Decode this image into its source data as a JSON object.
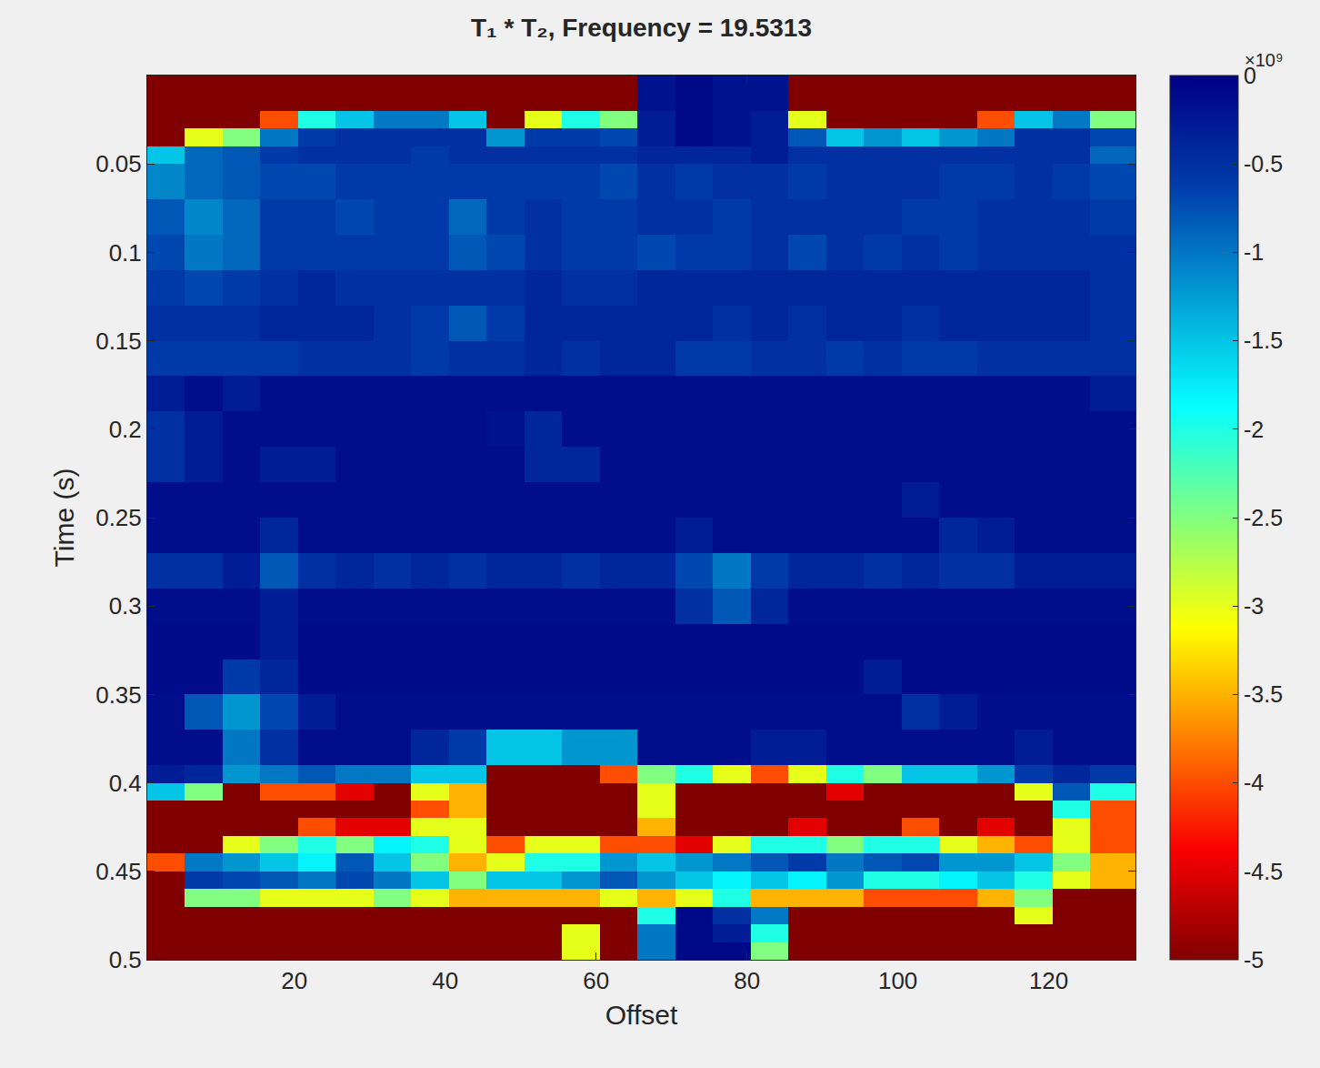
{
  "chart_data": {
    "type": "heatmap",
    "title": "T₁ * T₂, Frequency = 19.5313",
    "xlabel": "Offset",
    "ylabel": "Time (s)",
    "xlim": [
      0.5,
      131.5
    ],
    "ylim": [
      0.5,
      0
    ],
    "xticks": [
      20,
      40,
      60,
      80,
      100,
      120
    ],
    "yticks": [
      0.05,
      0.1,
      0.15,
      0.2,
      0.25,
      0.3,
      0.35,
      0.4,
      0.45,
      0.5
    ],
    "x_edges": [
      0.5,
      5.5,
      10.5,
      15.5,
      20.5,
      25.5,
      30.5,
      35.5,
      40.5,
      45.5,
      50.5,
      55.5,
      60.5,
      65.5,
      70.5,
      75.5,
      80.5,
      85.5,
      90.5,
      95.5,
      100.5,
      105.5,
      110.5,
      115.5,
      120.5,
      125.5,
      131.5
    ],
    "y_edges": [
      0,
      0.01,
      0.02,
      0.03,
      0.04,
      0.05,
      0.07,
      0.09,
      0.11,
      0.13,
      0.15,
      0.17,
      0.19,
      0.21,
      0.23,
      0.25,
      0.27,
      0.29,
      0.31,
      0.33,
      0.35,
      0.37,
      0.39,
      0.4,
      0.41,
      0.42,
      0.43,
      0.44,
      0.45,
      0.46,
      0.47,
      0.48,
      0.49,
      0.5
    ],
    "cells": [
      [
        -6,
        -6,
        -6,
        -6,
        -6,
        -6,
        -6,
        -6,
        -6,
        -6,
        -6,
        -6,
        -6,
        -0.2,
        -0.1,
        -0.2,
        -0.2,
        -6,
        -6,
        -6,
        -6,
        -6,
        -6,
        -6,
        -6,
        -6
      ],
      [
        -6,
        -6,
        -6,
        -6,
        -6,
        -6,
        -6,
        -6,
        -6,
        -6,
        -6,
        -6,
        -6,
        -0.2,
        -0.1,
        -0.2,
        -0.2,
        -6,
        -6,
        -6,
        -6,
        -6,
        -6,
        -6,
        -6,
        -6
      ],
      [
        -6,
        -6,
        -6,
        -4,
        -2,
        -1.5,
        -1,
        -1,
        -1.5,
        -5,
        -3,
        -2,
        -2.5,
        -0.3,
        -0.1,
        -0.2,
        -0.3,
        -3,
        -6,
        -5,
        -6,
        -5,
        -4,
        -1.5,
        -1,
        -2.5
      ],
      [
        -5,
        -3,
        -2.5,
        -1,
        -0.6,
        -0.5,
        -0.5,
        -0.5,
        -0.5,
        -1.2,
        -0.6,
        -0.6,
        -0.7,
        -0.3,
        -0.1,
        -0.2,
        -0.3,
        -0.8,
        -1.5,
        -1.2,
        -1.5,
        -1.2,
        -1,
        -0.5,
        -0.5,
        -0.7
      ],
      [
        -1.5,
        -0.9,
        -0.8,
        -0.6,
        -0.5,
        -0.5,
        -0.5,
        -0.6,
        -0.5,
        -0.5,
        -0.5,
        -0.5,
        -0.5,
        -0.4,
        -0.4,
        -0.4,
        -0.3,
        -0.5,
        -0.5,
        -0.5,
        -0.5,
        -0.5,
        -0.5,
        -0.5,
        -0.5,
        -0.9
      ],
      [
        -1.1,
        -0.9,
        -0.8,
        -0.7,
        -0.7,
        -0.6,
        -0.6,
        -0.6,
        -0.6,
        -0.6,
        -0.6,
        -0.6,
        -0.7,
        -0.5,
        -0.6,
        -0.5,
        -0.5,
        -0.6,
        -0.5,
        -0.5,
        -0.5,
        -0.6,
        -0.6,
        -0.5,
        -0.6,
        -0.7
      ],
      [
        -0.8,
        -1.1,
        -0.9,
        -0.6,
        -0.6,
        -0.7,
        -0.6,
        -0.6,
        -0.9,
        -0.6,
        -0.5,
        -0.6,
        -0.6,
        -0.5,
        -0.5,
        -0.6,
        -0.5,
        -0.5,
        -0.5,
        -0.5,
        -0.6,
        -0.6,
        -0.5,
        -0.5,
        -0.5,
        -0.6
      ],
      [
        -0.7,
        -1.0,
        -0.9,
        -0.6,
        -0.6,
        -0.6,
        -0.6,
        -0.6,
        -0.8,
        -0.7,
        -0.5,
        -0.6,
        -0.6,
        -0.7,
        -0.6,
        -0.6,
        -0.5,
        -0.7,
        -0.5,
        -0.6,
        -0.5,
        -0.6,
        -0.5,
        -0.5,
        -0.5,
        -0.5
      ],
      [
        -0.6,
        -0.7,
        -0.6,
        -0.5,
        -0.4,
        -0.5,
        -0.5,
        -0.5,
        -0.5,
        -0.5,
        -0.4,
        -0.5,
        -0.5,
        -0.4,
        -0.4,
        -0.4,
        -0.4,
        -0.4,
        -0.4,
        -0.4,
        -0.4,
        -0.4,
        -0.4,
        -0.4,
        -0.4,
        -0.5
      ],
      [
        -0.5,
        -0.5,
        -0.5,
        -0.4,
        -0.4,
        -0.4,
        -0.5,
        -0.6,
        -0.8,
        -0.6,
        -0.4,
        -0.4,
        -0.4,
        -0.4,
        -0.4,
        -0.5,
        -0.4,
        -0.5,
        -0.4,
        -0.4,
        -0.5,
        -0.4,
        -0.4,
        -0.4,
        -0.4,
        -0.5
      ],
      [
        -0.6,
        -0.6,
        -0.6,
        -0.6,
        -0.5,
        -0.5,
        -0.5,
        -0.6,
        -0.5,
        -0.5,
        -0.4,
        -0.5,
        -0.4,
        -0.4,
        -0.6,
        -0.6,
        -0.5,
        -0.5,
        -0.6,
        -0.5,
        -0.6,
        -0.6,
        -0.5,
        -0.5,
        -0.5,
        -0.5
      ],
      [
        -0.3,
        -0.15,
        -0.3,
        -0.15,
        -0.15,
        -0.15,
        -0.15,
        -0.15,
        -0.15,
        -0.15,
        -0.15,
        -0.15,
        -0.15,
        -0.15,
        -0.15,
        -0.15,
        -0.15,
        -0.15,
        -0.15,
        -0.15,
        -0.15,
        -0.15,
        -0.15,
        -0.15,
        -0.15,
        -0.3
      ],
      [
        -0.5,
        -0.3,
        -0.15,
        -0.15,
        -0.15,
        -0.15,
        -0.15,
        -0.15,
        -0.15,
        -0.2,
        -0.4,
        -0.15,
        -0.15,
        -0.15,
        -0.15,
        -0.15,
        -0.15,
        -0.15,
        -0.15,
        -0.15,
        -0.15,
        -0.15,
        -0.15,
        -0.15,
        -0.15,
        -0.15
      ],
      [
        -0.5,
        -0.3,
        -0.15,
        -0.3,
        -0.3,
        -0.15,
        -0.15,
        -0.15,
        -0.15,
        -0.15,
        -0.4,
        -0.4,
        -0.15,
        -0.15,
        -0.15,
        -0.15,
        -0.15,
        -0.15,
        -0.15,
        -0.15,
        -0.15,
        -0.15,
        -0.15,
        -0.15,
        -0.15,
        -0.15
      ],
      [
        -0.15,
        -0.15,
        -0.15,
        -0.15,
        -0.15,
        -0.15,
        -0.15,
        -0.15,
        -0.15,
        -0.15,
        -0.15,
        -0.15,
        -0.15,
        -0.15,
        -0.15,
        -0.15,
        -0.15,
        -0.15,
        -0.15,
        -0.15,
        -0.3,
        -0.15,
        -0.15,
        -0.15,
        -0.15,
        -0.15
      ],
      [
        -0.15,
        -0.15,
        -0.15,
        -0.4,
        -0.15,
        -0.15,
        -0.15,
        -0.15,
        -0.15,
        -0.15,
        -0.15,
        -0.15,
        -0.15,
        -0.15,
        -0.3,
        -0.15,
        -0.15,
        -0.15,
        -0.15,
        -0.15,
        -0.15,
        -0.4,
        -0.3,
        -0.15,
        -0.15,
        -0.15
      ],
      [
        -0.5,
        -0.5,
        -0.3,
        -0.8,
        -0.5,
        -0.4,
        -0.5,
        -0.4,
        -0.5,
        -0.4,
        -0.4,
        -0.5,
        -0.4,
        -0.4,
        -0.7,
        -1.0,
        -0.6,
        -0.4,
        -0.4,
        -0.5,
        -0.4,
        -0.5,
        -0.5,
        -0.3,
        -0.3,
        -0.3
      ],
      [
        -0.15,
        -0.15,
        -0.15,
        -0.3,
        -0.15,
        -0.15,
        -0.15,
        -0.15,
        -0.15,
        -0.15,
        -0.15,
        -0.15,
        -0.15,
        -0.15,
        -0.5,
        -0.8,
        -0.4,
        -0.15,
        -0.15,
        -0.15,
        -0.15,
        -0.15,
        -0.15,
        -0.15,
        -0.15,
        -0.15
      ],
      [
        -0.12,
        -0.12,
        -0.12,
        -0.3,
        -0.12,
        -0.12,
        -0.12,
        -0.12,
        -0.12,
        -0.12,
        -0.12,
        -0.12,
        -0.12,
        -0.12,
        -0.12,
        -0.12,
        -0.12,
        -0.12,
        -0.12,
        -0.12,
        -0.12,
        -0.12,
        -0.12,
        -0.12,
        -0.12,
        -0.12
      ],
      [
        -0.12,
        -0.12,
        -0.6,
        -0.4,
        -0.12,
        -0.12,
        -0.12,
        -0.12,
        -0.12,
        -0.12,
        -0.12,
        -0.12,
        -0.12,
        -0.12,
        -0.12,
        -0.12,
        -0.12,
        -0.12,
        -0.12,
        -0.3,
        -0.12,
        -0.12,
        -0.12,
        -0.12,
        -0.12,
        -0.12
      ],
      [
        -0.15,
        -0.8,
        -1.2,
        -0.7,
        -0.3,
        -0.15,
        -0.15,
        -0.15,
        -0.15,
        -0.15,
        -0.15,
        -0.15,
        -0.15,
        -0.15,
        -0.15,
        -0.15,
        -0.15,
        -0.15,
        -0.15,
        -0.15,
        -0.5,
        -0.3,
        -0.15,
        -0.15,
        -0.15,
        -0.15
      ],
      [
        -0.15,
        -0.15,
        -1.0,
        -0.5,
        -0.15,
        -0.15,
        -0.15,
        -0.4,
        -0.6,
        -1.5,
        -1.5,
        -1.2,
        -1.2,
        -0.15,
        -0.15,
        -0.15,
        -0.3,
        -0.3,
        -0.15,
        -0.15,
        -0.15,
        -0.15,
        -0.15,
        -0.3,
        -0.15,
        -0.15
      ],
      [
        -0.3,
        -0.4,
        -1.2,
        -1.0,
        -0.8,
        -1,
        -1,
        -1.5,
        -1.5,
        -5,
        -5,
        -5,
        -4,
        -2.5,
        -2,
        -3,
        -4,
        -3,
        -2,
        -2.5,
        -1.5,
        -1.5,
        -1.2,
        -0.6,
        -0.4,
        -0.6
      ],
      [
        -1.5,
        -2.5,
        -5,
        -4,
        -4,
        -4.5,
        -5,
        -3,
        -3.5,
        -6,
        -6,
        -6,
        -6,
        -3,
        -6,
        -6,
        -6,
        -6,
        -4.5,
        -6,
        -5,
        -5,
        -6,
        -3,
        -0.8,
        -2
      ],
      [
        -6,
        -6,
        -6,
        -6,
        -5,
        -5,
        -6,
        -4,
        -3.5,
        -6,
        -6,
        -6,
        -6,
        -3,
        -6,
        -6,
        -6,
        -6,
        -5,
        -6,
        -6,
        -6,
        -6,
        -5,
        -2,
        -4
      ],
      [
        -6,
        -6,
        -5,
        -6,
        -4,
        -4.5,
        -4.5,
        -3,
        -3,
        -6,
        -6,
        -6,
        -5.5,
        -3.5,
        -6,
        -6,
        -5,
        -4.5,
        -5,
        -5,
        -4,
        -5,
        -4.5,
        -5,
        -3,
        -4
      ],
      [
        -6,
        -5,
        -3,
        -2.5,
        -2,
        -2.5,
        -1.8,
        -2,
        -3,
        -4,
        -3,
        -3,
        -4,
        -4,
        -4.5,
        -3,
        -2,
        -2,
        -2.5,
        -2,
        -2,
        -3,
        -3.5,
        -4,
        -3,
        -4
      ],
      [
        -4,
        -1.0,
        -1.2,
        -1.5,
        -1.8,
        -0.8,
        -1.5,
        -2.5,
        -3.5,
        -3,
        -2,
        -2,
        -1.2,
        -1.5,
        -1.2,
        -1.0,
        -0.8,
        -0.6,
        -1.0,
        -0.8,
        -0.7,
        -1.2,
        -1.2,
        -1.5,
        -2.5,
        -3.5
      ],
      [
        -5,
        -0.6,
        -0.7,
        -0.8,
        -1.0,
        -0.7,
        -1.0,
        -1.5,
        -2.5,
        -1.5,
        -1.5,
        -1.2,
        -0.8,
        -1.2,
        -1.5,
        -1.8,
        -1.5,
        -1.8,
        -1.2,
        -2,
        -2,
        -1.8,
        -1.5,
        -2,
        -3,
        -3.5
      ],
      [
        -6,
        -2.5,
        -2.5,
        -3,
        -3,
        -3,
        -2.5,
        -3,
        -3.5,
        -3.5,
        -3.5,
        -3.5,
        -3,
        -3.5,
        -3,
        -2,
        -3.5,
        -3.5,
        -3.5,
        -4,
        -4,
        -4,
        -3.5,
        -2.5,
        -5,
        -5
      ],
      [
        -6,
        -6,
        -6,
        -5,
        -5,
        -6,
        -6,
        -6,
        -6,
        -6,
        -6,
        -6,
        -6,
        -2,
        -0.1,
        -0.5,
        -1,
        -6,
        -6,
        -6,
        -6,
        -6,
        -6,
        -3,
        -6,
        -6
      ],
      [
        -6,
        -6,
        -6,
        -6,
        -6,
        -6,
        -6,
        -6,
        -6,
        -6,
        -6,
        -3,
        -6,
        -1,
        -0.1,
        -0.3,
        -2,
        -6,
        -6,
        -6,
        -6,
        -6,
        -6,
        -6,
        -6,
        -6
      ],
      [
        -6,
        -6,
        -6,
        -6,
        -6,
        -6,
        -6,
        -6,
        -6,
        -6,
        -6,
        -3,
        -6,
        -1,
        -0.1,
        -0.1,
        -2.5,
        -6,
        -6,
        -6,
        -6,
        -6,
        -6,
        -6,
        -6,
        -6
      ]
    ],
    "colorbar": {
      "range": [
        -5,
        0
      ],
      "ticks": [
        0,
        -0.5,
        -1,
        -1.5,
        -2,
        -2.5,
        -3,
        -3.5,
        -4,
        -4.5,
        -5
      ],
      "exponent_label": "×10⁹"
    }
  }
}
